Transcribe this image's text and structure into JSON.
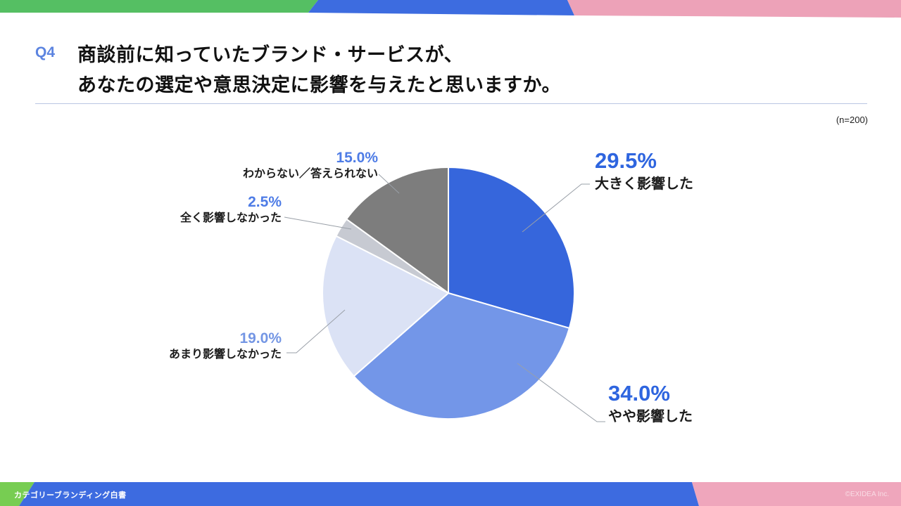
{
  "header": {
    "q_label": "Q4",
    "title_line1": "商談前に知っていたブランド・サービスが、",
    "title_line2": "あなたの選定や意思決定に影響を与えたと思いますか。",
    "sample_note": "(n=200)"
  },
  "chart_data": {
    "type": "pie",
    "title": "商談前に知っていたブランド・サービスが、あなたの選定や意思決定に影響を与えたと思いますか。",
    "sample_size": "n=200",
    "start_angle_deg": 0,
    "direction": "clockwise",
    "categories": [
      "大きく影響した",
      "やや影響した",
      "あまり影響しなかった",
      "全く影響しなかった",
      "わからない／答えられない"
    ],
    "values": [
      29.5,
      34.0,
      19.0,
      2.5,
      15.0
    ],
    "labels": [
      "29.5%",
      "34.0%",
      "19.0%",
      "2.5%",
      "15.0%"
    ],
    "colors": [
      "#3666DC",
      "#7396E8",
      "#DBE2F5",
      "#C7CAD2",
      "#7D7D7D"
    ],
    "label_colors": [
      "#2E65DF",
      "#2E65DF",
      "#7496E4",
      "#4E7CE6",
      "#4E7CE6"
    ],
    "legend_position": "callout-labels",
    "grid": false
  },
  "footer": {
    "left_text": "カテゴリーブランディング白書",
    "right_text": "©EXIDEA Inc."
  },
  "accent_colors": {
    "band_green": "#55BF63",
    "band_blue": "#3D6CE0",
    "band_pink": "#EDA2B8",
    "footer_green": "#77CD52",
    "footer_blue": "#3D6BE0",
    "footer_pink": "#EFA6BC",
    "divider": "#B9C6E3",
    "leader_line": "#9AA0A8"
  }
}
